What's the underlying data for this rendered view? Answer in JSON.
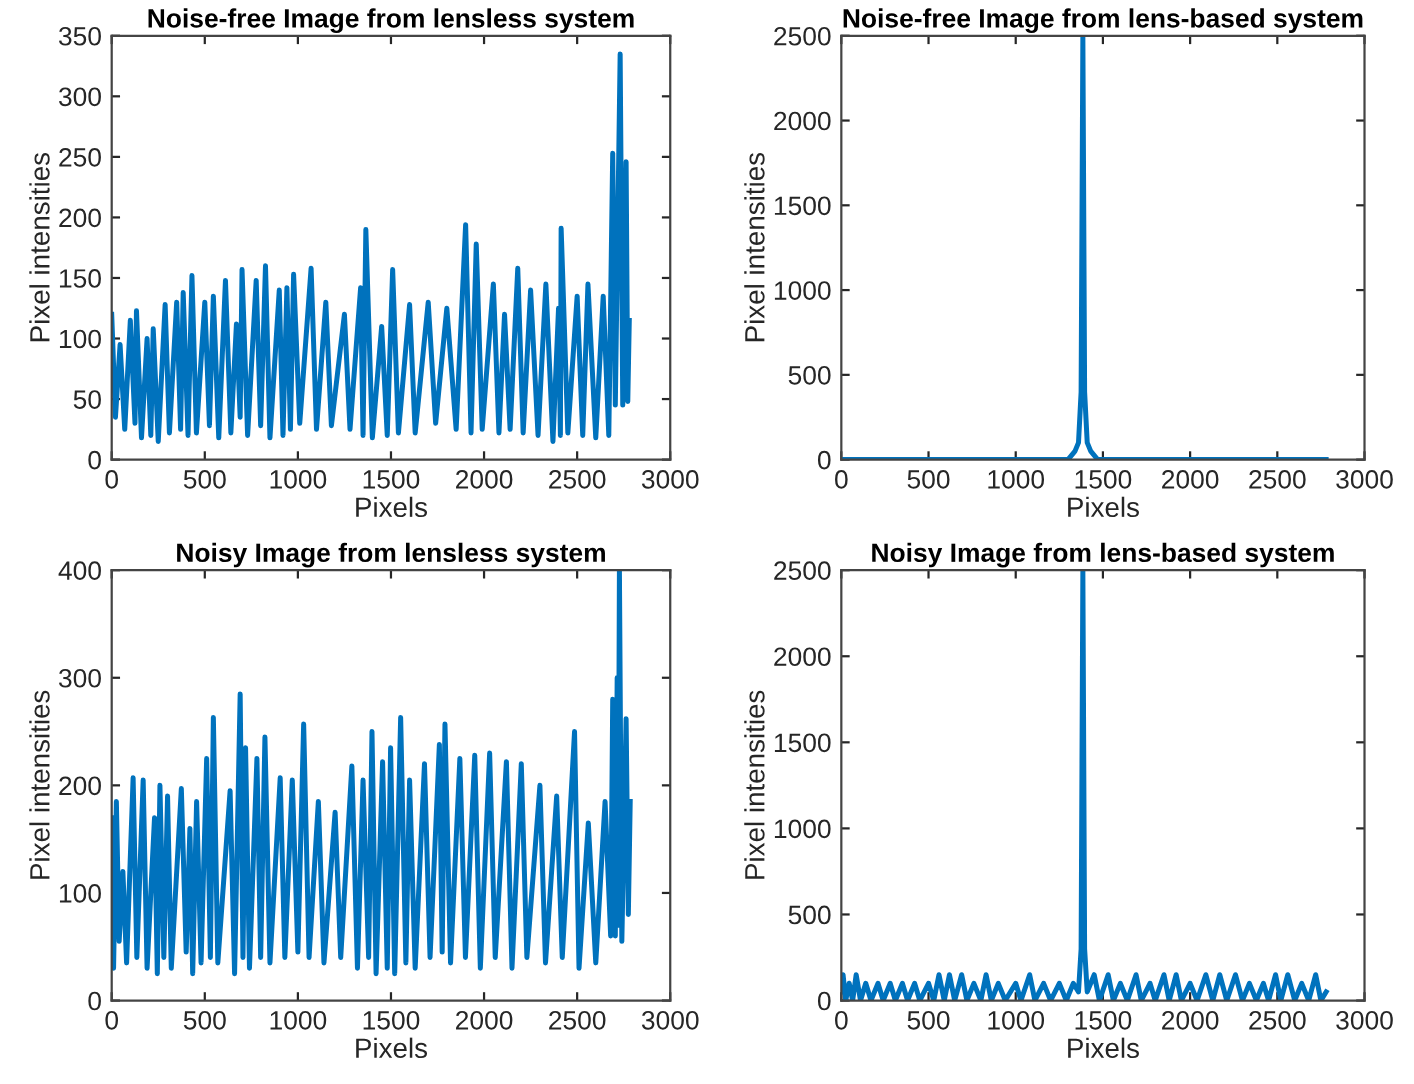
{
  "chart_data": [
    {
      "type": "line",
      "title": "Noise-free Image from lensless system",
      "xlabel": "Pixels",
      "ylabel": "Pixel intensities",
      "xlim": [
        0,
        3000
      ],
      "ylim": [
        0,
        350
      ],
      "xticks": [
        0,
        500,
        1000,
        1500,
        2000,
        2500,
        3000
      ],
      "yticks": [
        0,
        50,
        100,
        150,
        200,
        250,
        300,
        350
      ],
      "grid": false,
      "legend": false,
      "marker": "none",
      "line_style": "solid",
      "series": [
        {
          "color": "#0072bd",
          "x": [
            0,
            20,
            45,
            70,
            100,
            125,
            133,
            160,
            190,
            210,
            223,
            250,
            287,
            310,
            349,
            370,
            384,
            410,
            431,
            455,
            500,
            525,
            546,
            575,
            611,
            640,
            670,
            690,
            700,
            730,
            776,
            800,
            826,
            850,
            900,
            920,
            941,
            960,
            977,
            1010,
            1071,
            1100,
            1150,
            1180,
            1250,
            1280,
            1337,
            1350,
            1365,
            1400,
            1450,
            1480,
            1509,
            1540,
            1600,
            1630,
            1700,
            1740,
            1800,
            1850,
            1901,
            1930,
            1958,
            1990,
            2050,
            2080,
            2110,
            2140,
            2181,
            2210,
            2250,
            2290,
            2332,
            2370,
            2400,
            2410,
            2414,
            2450,
            2500,
            2530,
            2558,
            2600,
            2640,
            2670,
            2691,
            2705,
            2731,
            2745,
            2763,
            2772,
            2780
          ],
          "values": [
            120,
            35,
            95,
            25,
            115,
            30,
            123,
            18,
            100,
            20,
            108,
            15,
            128,
            22,
            130,
            25,
            138,
            20,
            152,
            22,
            130,
            28,
            135,
            18,
            148,
            22,
            112,
            35,
            157,
            20,
            148,
            28,
            160,
            18,
            140,
            20,
            142,
            25,
            153,
            30,
            158,
            25,
            130,
            28,
            120,
            25,
            142,
            20,
            190,
            18,
            110,
            20,
            157,
            22,
            128,
            22,
            130,
            30,
            125,
            25,
            194,
            22,
            178,
            25,
            145,
            22,
            120,
            25,
            158,
            22,
            140,
            20,
            145,
            15,
            125,
            20,
            191,
            22,
            135,
            20,
            145,
            18,
            135,
            20,
            253,
            45,
            335,
            45,
            246,
            48,
            115
          ]
        }
      ]
    },
    {
      "type": "line",
      "title": "Noise-free Image from lens-based system",
      "xlabel": "Pixels",
      "ylabel": "Pixel intensities",
      "xlim": [
        0,
        3000
      ],
      "ylim": [
        0,
        2500
      ],
      "xticks": [
        0,
        500,
        1000,
        1500,
        2000,
        2500,
        3000
      ],
      "yticks": [
        0,
        500,
        1000,
        1500,
        2000,
        2500
      ],
      "grid": false,
      "legend": false,
      "marker": "none",
      "line_style": "solid",
      "series": [
        {
          "color": "#0072bd",
          "x": [
            0,
            100,
            200,
            300,
            400,
            500,
            600,
            700,
            800,
            900,
            1000,
            1100,
            1200,
            1300,
            1340,
            1360,
            1375,
            1385,
            1395,
            1410,
            1430,
            1470,
            1600,
            1700,
            1800,
            1900,
            2000,
            2100,
            2200,
            2300,
            2400,
            2500,
            2600,
            2700,
            2780
          ],
          "values": [
            0,
            0,
            0,
            0,
            0,
            0,
            0,
            0,
            0,
            0,
            0,
            0,
            0,
            0,
            50,
            100,
            400,
            2500,
            400,
            100,
            50,
            0,
            0,
            0,
            0,
            0,
            0,
            0,
            0,
            0,
            0,
            0,
            0,
            0,
            0
          ]
        }
      ]
    },
    {
      "type": "line",
      "title": "Noisy Image from lensless system",
      "xlabel": "Pixels",
      "ylabel": "Pixel intensities",
      "xlim": [
        0,
        3000
      ],
      "ylim": [
        0,
        400
      ],
      "xticks": [
        0,
        500,
        1000,
        1500,
        2000,
        2500,
        3000
      ],
      "yticks": [
        0,
        100,
        200,
        300,
        400
      ],
      "grid": false,
      "legend": false,
      "marker": "none",
      "line_style": "solid",
      "series": [
        {
          "color": "#0072bd",
          "x": [
            0,
            10,
            25,
            40,
            60,
            80,
            115,
            135,
            169,
            190,
            230,
            245,
            259,
            280,
            300,
            320,
            374,
            400,
            420,
            435,
            456,
            480,
            510,
            530,
            546,
            570,
            636,
            660,
            690,
            705,
            719,
            740,
            780,
            800,
            823,
            850,
            905,
            930,
            970,
            1000,
            1031,
            1060,
            1110,
            1140,
            1200,
            1230,
            1290,
            1320,
            1350,
            1380,
            1398,
            1420,
            1455,
            1480,
            1498,
            1520,
            1552,
            1580,
            1600,
            1630,
            1680,
            1710,
            1760,
            1775,
            1790,
            1820,
            1870,
            1900,
            1950,
            1980,
            2030,
            2060,
            2120,
            2150,
            2200,
            2230,
            2300,
            2330,
            2390,
            2420,
            2486,
            2510,
            2560,
            2600,
            2650,
            2680,
            2691,
            2705,
            2715,
            2720,
            2727,
            2740,
            2763,
            2775,
            2785
          ],
          "values": [
            170,
            30,
            185,
            55,
            120,
            35,
            207,
            40,
            205,
            30,
            170,
            25,
            200,
            40,
            190,
            30,
            197,
            45,
            160,
            25,
            185,
            35,
            225,
            40,
            263,
            35,
            195,
            25,
            285,
            40,
            235,
            30,
            225,
            40,
            245,
            35,
            207,
            40,
            205,
            45,
            257,
            40,
            185,
            35,
            175,
            40,
            218,
            30,
            205,
            40,
            250,
            25,
            222,
            30,
            235,
            25,
            263,
            35,
            205,
            30,
            220,
            40,
            238,
            45,
            257,
            35,
            225,
            40,
            228,
            30,
            230,
            40,
            222,
            30,
            220,
            40,
            200,
            35,
            190,
            40,
            250,
            30,
            165,
            35,
            185,
            60,
            280,
            60,
            300,
            70,
            400,
            55,
            262,
            80,
            185
          ]
        }
      ]
    },
    {
      "type": "line",
      "title": "Noisy Image from lens-based system",
      "xlabel": "Pixels",
      "ylabel": "Pixel intensities",
      "xlim": [
        0,
        3000
      ],
      "ylim": [
        0,
        2500
      ],
      "xticks": [
        0,
        500,
        1000,
        1500,
        2000,
        2500,
        3000
      ],
      "yticks": [
        0,
        500,
        1000,
        1500,
        2000,
        2500
      ],
      "grid": false,
      "legend": false,
      "marker": "none",
      "line_style": "solid",
      "series": [
        {
          "color": "#0072bd",
          "x": [
            0,
            10,
            25,
            45,
            65,
            85,
            110,
            140,
            170,
            210,
            240,
            280,
            310,
            350,
            380,
            420,
            450,
            500,
            530,
            560,
            590,
            620,
            650,
            690,
            720,
            760,
            800,
            830,
            860,
            900,
            940,
            1000,
            1030,
            1080,
            1110,
            1160,
            1200,
            1250,
            1290,
            1330,
            1360,
            1375,
            1385,
            1395,
            1410,
            1450,
            1480,
            1530,
            1560,
            1600,
            1640,
            1690,
            1720,
            1770,
            1800,
            1850,
            1880,
            1920,
            1950,
            2000,
            2040,
            2090,
            2130,
            2170,
            2210,
            2260,
            2300,
            2340,
            2380,
            2420,
            2450,
            2490,
            2520,
            2560,
            2600,
            2640,
            2680,
            2720,
            2750,
            2780
          ],
          "values": [
            50,
            150,
            0,
            100,
            0,
            150,
            0,
            100,
            0,
            100,
            0,
            100,
            0,
            100,
            0,
            100,
            0,
            100,
            0,
            150,
            0,
            150,
            0,
            150,
            0,
            100,
            0,
            150,
            0,
            100,
            0,
            100,
            0,
            150,
            0,
            100,
            0,
            100,
            0,
            100,
            50,
            300,
            2500,
            300,
            50,
            150,
            0,
            150,
            0,
            100,
            0,
            150,
            0,
            100,
            0,
            150,
            0,
            150,
            0,
            100,
            0,
            150,
            0,
            150,
            0,
            150,
            0,
            100,
            0,
            100,
            0,
            150,
            0,
            150,
            0,
            100,
            0,
            150,
            0,
            50
          ]
        }
      ]
    }
  ]
}
